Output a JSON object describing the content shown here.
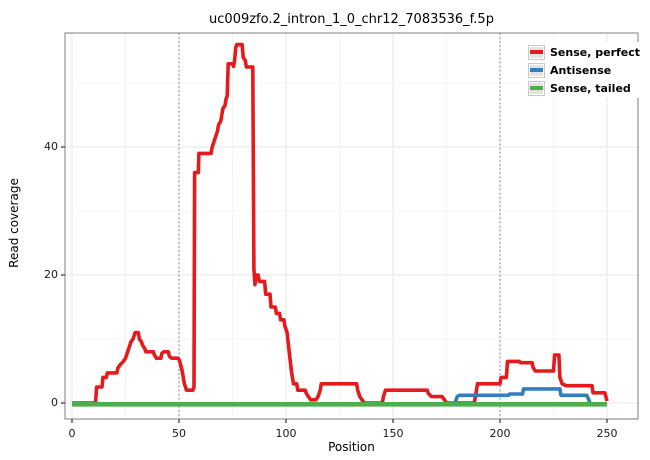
{
  "chart_data": {
    "type": "line",
    "title": "uc009zfo.2_intron_1_0_chr12_7083536_f.5p",
    "xlabel": "Position",
    "ylabel": "Read coverage",
    "x_ticks": [
      0,
      50,
      100,
      150,
      200,
      250
    ],
    "y_ticks": [
      0,
      20,
      40
    ],
    "x_minor_ticks": [
      25,
      75,
      125,
      175,
      225
    ],
    "y_minor_ticks": [
      10,
      30,
      50
    ],
    "xlim": [
      -3,
      264
    ],
    "ylim": [
      -1.5,
      59
    ],
    "grid": "on",
    "legend_position": "top-right-inside",
    "vlines": {
      "positions": [
        50,
        200
      ],
      "style": "dotted",
      "color": "#8c8c8c"
    },
    "series": [
      {
        "name": "Sense, perfect",
        "color": "#e41a1c",
        "points": [
          [
            0,
            0
          ],
          [
            11,
            0
          ],
          [
            11.5,
            2.5
          ],
          [
            14,
            2.5
          ],
          [
            14.5,
            4
          ],
          [
            16,
            4
          ],
          [
            16.5,
            4.7
          ],
          [
            21,
            4.7
          ],
          [
            21.5,
            5.5
          ],
          [
            22.5,
            6
          ],
          [
            24,
            6.5
          ],
          [
            25,
            7
          ],
          [
            26,
            8
          ],
          [
            27,
            9
          ],
          [
            27.5,
            9.5
          ],
          [
            28.5,
            10
          ],
          [
            29,
            10.5
          ],
          [
            29.5,
            11
          ],
          [
            31,
            11
          ],
          [
            31.5,
            10
          ],
          [
            32.5,
            9.5
          ],
          [
            33,
            9
          ],
          [
            34,
            8.5
          ],
          [
            34.5,
            8
          ],
          [
            38,
            8
          ],
          [
            38.5,
            7.5
          ],
          [
            39.5,
            7
          ],
          [
            41.5,
            7
          ],
          [
            42,
            7.8
          ],
          [
            43,
            8
          ],
          [
            45,
            8
          ],
          [
            45.5,
            7.3
          ],
          [
            46.5,
            7
          ],
          [
            49.5,
            7
          ],
          [
            50,
            6.8
          ],
          [
            50.5,
            6.3
          ],
          [
            51.5,
            5
          ],
          [
            52.5,
            3
          ],
          [
            53.5,
            2
          ],
          [
            56.5,
            2
          ],
          [
            57,
            2.5
          ],
          [
            57.3,
            36
          ],
          [
            59,
            36
          ],
          [
            59.3,
            39
          ],
          [
            65,
            39
          ],
          [
            65.5,
            40
          ],
          [
            66.5,
            41
          ],
          [
            67,
            41.5
          ],
          [
            68,
            42.5
          ],
          [
            68.5,
            43.5
          ],
          [
            69.5,
            44
          ],
          [
            70,
            45
          ],
          [
            70.5,
            46
          ],
          [
            71.5,
            46.5
          ],
          [
            72,
            47.5
          ],
          [
            72.5,
            48
          ],
          [
            73,
            53
          ],
          [
            75,
            53
          ],
          [
            75.5,
            52.6
          ],
          [
            76,
            53.5
          ],
          [
            76.5,
            55.5
          ],
          [
            77,
            56
          ],
          [
            79.5,
            56
          ],
          [
            80,
            54
          ],
          [
            81,
            53.5
          ],
          [
            81.5,
            52.5
          ],
          [
            84.5,
            52.5
          ],
          [
            85,
            21
          ],
          [
            85.5,
            18.5
          ],
          [
            86,
            20
          ],
          [
            87,
            20
          ],
          [
            87.5,
            19
          ],
          [
            90,
            19
          ],
          [
            90.5,
            17
          ],
          [
            92.5,
            17
          ],
          [
            93,
            15
          ],
          [
            95,
            15
          ],
          [
            95.5,
            14
          ],
          [
            97,
            14
          ],
          [
            97.5,
            13
          ],
          [
            99,
            13
          ],
          [
            99.5,
            12
          ],
          [
            100.5,
            11
          ],
          [
            101.5,
            8
          ],
          [
            102.5,
            5
          ],
          [
            103,
            4
          ],
          [
            103.5,
            3
          ],
          [
            105,
            3
          ],
          [
            105.5,
            2
          ],
          [
            109,
            2
          ],
          [
            109.5,
            1.5
          ],
          [
            110.5,
            1
          ],
          [
            111.5,
            0.5
          ],
          [
            114,
            0.5
          ],
          [
            115,
            1
          ],
          [
            116,
            2
          ],
          [
            116.5,
            3
          ],
          [
            133,
            3
          ],
          [
            133.5,
            2
          ],
          [
            134.5,
            1
          ],
          [
            135.5,
            0.5
          ],
          [
            136.5,
            0
          ],
          [
            145,
            0
          ],
          [
            145.5,
            1
          ],
          [
            146.5,
            2
          ],
          [
            166,
            2
          ],
          [
            166.5,
            1.5
          ],
          [
            168,
            1
          ],
          [
            173,
            1
          ],
          [
            174,
            0.5
          ],
          [
            175,
            0
          ],
          [
            188,
            0
          ],
          [
            188.5,
            1
          ],
          [
            189.5,
            3
          ],
          [
            200,
            3
          ],
          [
            200.5,
            4
          ],
          [
            203,
            4
          ],
          [
            203.5,
            6.5
          ],
          [
            209,
            6.5
          ],
          [
            209.5,
            6.3
          ],
          [
            215,
            6.3
          ],
          [
            215.5,
            5.5
          ],
          [
            216.5,
            5
          ],
          [
            225,
            5
          ],
          [
            225.5,
            7.5
          ],
          [
            227.5,
            7.5
          ],
          [
            228,
            4
          ],
          [
            229,
            3
          ],
          [
            231,
            2.7
          ],
          [
            243,
            2.7
          ],
          [
            243.5,
            1.6
          ],
          [
            249,
            1.6
          ],
          [
            249.5,
            1
          ],
          [
            250,
            0.3
          ]
        ]
      },
      {
        "name": "Antisense",
        "color": "#377eb8",
        "points": [
          [
            179,
            0
          ],
          [
            179.5,
            0.5
          ],
          [
            180,
            1
          ],
          [
            181,
            1.2
          ],
          [
            204,
            1.2
          ],
          [
            204.5,
            1.4
          ],
          [
            210.5,
            1.4
          ],
          [
            211,
            2.2
          ],
          [
            228,
            2.2
          ],
          [
            228.5,
            1.2
          ],
          [
            240.5,
            1.2
          ],
          [
            241.5,
            0.5
          ],
          [
            242,
            0.1
          ]
        ]
      },
      {
        "name": "Sense, tailed",
        "color": "#4daf4a",
        "points": [
          [
            0,
            -0.2
          ],
          [
            250,
            -0.2
          ]
        ]
      }
    ]
  }
}
